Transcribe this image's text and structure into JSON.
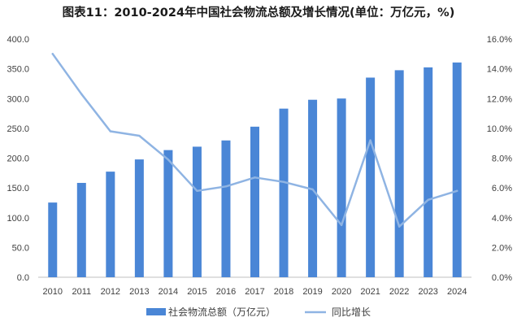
{
  "chart_data": {
    "type": "bar",
    "title": "图表11：2010-2024年中国社会物流总额及增长情况(单位：万亿元，%)",
    "categories": [
      "2010",
      "2011",
      "2012",
      "2013",
      "2014",
      "2015",
      "2016",
      "2017",
      "2018",
      "2019",
      "2020",
      "2021",
      "2022",
      "2023",
      "2024"
    ],
    "series": [
      {
        "name": "社会物流总额（万亿元）",
        "type": "bar",
        "axis": "left",
        "color": "#4a86d6",
        "values": [
          125.4,
          158.4,
          177.3,
          197.8,
          213.5,
          219.2,
          229.7,
          252.8,
          283.1,
          298.0,
          300.1,
          335.2,
          347.6,
          352.4,
          360.6
        ]
      },
      {
        "name": "同比增长",
        "type": "line",
        "axis": "right",
        "color": "#8fb4e3",
        "values": [
          15.0,
          12.3,
          9.8,
          9.5,
          7.9,
          5.8,
          6.1,
          6.7,
          6.4,
          5.9,
          3.5,
          9.2,
          3.4,
          5.2,
          5.8
        ]
      }
    ],
    "y_left": {
      "min": 0,
      "max": 400,
      "step": 50,
      "tick_labels": [
        "0.0",
        "50.0",
        "100.0",
        "150.0",
        "200.0",
        "250.0",
        "300.0",
        "350.0",
        "400.0"
      ]
    },
    "y_right": {
      "min": 0,
      "max": 16,
      "step": 2,
      "tick_labels": [
        "0.0%",
        "2.0%",
        "4.0%",
        "6.0%",
        "8.0%",
        "10.0%",
        "12.0%",
        "14.0%",
        "16.0%"
      ]
    },
    "grid": false,
    "legend_position": "bottom-center",
    "legend": [
      "社会物流总额（万亿元）",
      "同比增长"
    ]
  }
}
